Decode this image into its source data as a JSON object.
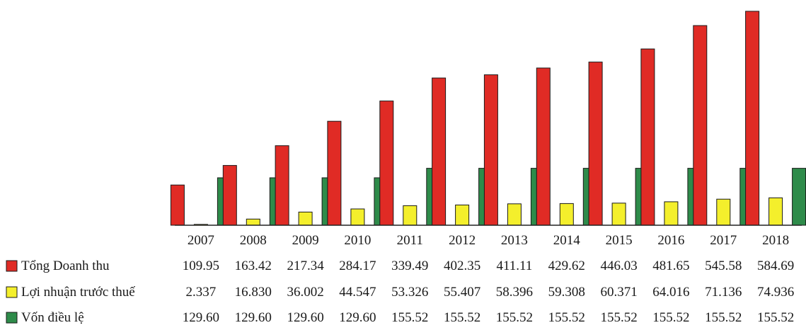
{
  "chart_data": {
    "type": "bar",
    "categories": [
      "2007",
      "2008",
      "2009",
      "2010",
      "2011",
      "2012",
      "2013",
      "2014",
      "2015",
      "2016",
      "2017",
      "2018"
    ],
    "series": [
      {
        "name": "Tổng Doanh thu",
        "color": "#e02b25",
        "values": [
          109.95,
          163.42,
          217.34,
          284.17,
          339.49,
          402.35,
          411.11,
          429.62,
          446.03,
          481.65,
          545.58,
          584.69
        ],
        "labels": [
          "109.95",
          "163.42",
          "217.34",
          "284.17",
          "339.49",
          "402.35",
          "411.11",
          "429.62",
          "446.03",
          "481.65",
          "545.58",
          "584.69"
        ]
      },
      {
        "name": "Lợi nhuận trước thuế",
        "color": "#f4ef2c",
        "values": [
          2.337,
          16.83,
          36.002,
          44.547,
          53.326,
          55.407,
          58.396,
          59.308,
          60.371,
          64.016,
          71.136,
          74.936
        ],
        "labels": [
          "2.337",
          "16.830",
          "36.002",
          "44.547",
          "53.326",
          "55.407",
          "58.396",
          "59.308",
          "60.371",
          "64.016",
          "71.136",
          "74.936"
        ]
      },
      {
        "name": "Vốn điều lệ",
        "color": "#2e8b4a",
        "values": [
          129.6,
          129.6,
          129.6,
          129.6,
          155.52,
          155.52,
          155.52,
          155.52,
          155.52,
          155.52,
          155.52,
          155.52
        ],
        "labels": [
          "129.60",
          "129.60",
          "129.60",
          "129.60",
          "155.52",
          "155.52",
          "155.52",
          "155.52",
          "155.52",
          "155.52",
          "155.52",
          "155.52"
        ]
      }
    ],
    "ylim": [
      0,
      600
    ],
    "grid": false,
    "legend": "data-table-left"
  }
}
